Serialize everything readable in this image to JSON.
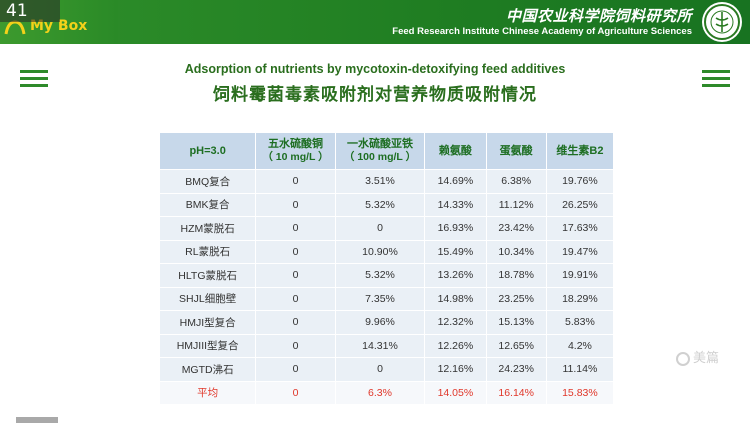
{
  "overlay": {
    "slide_number": "41"
  },
  "header": {
    "brand_text": "My    Box",
    "institute_cn": "中国农业科学院饲料研究所",
    "institute_en": "Feed Research Institute Chinese Academy of Agriculture Sciences",
    "brand_color": "#2f8f2a",
    "brand_text_color": "#f3d21a"
  },
  "slide": {
    "title_en": "Adsorption of nutrients by mycotoxin-detoxifying feed additives",
    "title_cn": "饲料霉菌毒素吸附剂对营养物质吸附情况"
  },
  "table": {
    "header_bg": "#c7d8ea",
    "header_text_color": "#1d6e22",
    "highlight_color": "#e0372a",
    "columns": [
      {
        "label": "pH=3.0",
        "sub": ""
      },
      {
        "label": "五水硫酸铜",
        "sub": "（ 10 mg/L ）"
      },
      {
        "label": "一水硫酸亚铁",
        "sub": "（ 100 mg/L ）"
      },
      {
        "label": "赖氨酸",
        "sub": ""
      },
      {
        "label": "蛋氨酸",
        "sub": ""
      },
      {
        "label": "维生素B2",
        "sub": ""
      }
    ],
    "rows": [
      [
        "BMQ复合",
        "0",
        "3.51%",
        "14.69%",
        "6.38%",
        "19.76%"
      ],
      [
        "BMK复合",
        "0",
        "5.32%",
        "14.33%",
        "11.12%",
        "26.25%"
      ],
      [
        "HZM蒙脱石",
        "0",
        "0",
        "16.93%",
        "23.42%",
        "17.63%"
      ],
      [
        "RL蒙脱石",
        "0",
        "10.90%",
        "15.49%",
        "10.34%",
        "19.47%"
      ],
      [
        "HLTG蒙脱石",
        "0",
        "5.32%",
        "13.26%",
        "18.78%",
        "19.91%"
      ],
      [
        "SHJL细胞壁",
        "0",
        "7.35%",
        "14.98%",
        "23.25%",
        "18.29%"
      ],
      [
        "HMJI型复合",
        "0",
        "9.96%",
        "12.32%",
        "15.13%",
        "5.83%"
      ],
      [
        "HMJIII型复合",
        "0",
        "14.31%",
        "12.26%",
        "12.65%",
        "4.2%"
      ],
      [
        "MGTD沸石",
        "0",
        "0",
        "12.16%",
        "24.23%",
        "11.14%"
      ]
    ],
    "average_row": [
      "平均",
      "0",
      "6.3%",
      "14.05%",
      "16.14%",
      "15.83%"
    ]
  },
  "watermark": {
    "text": "美篇",
    "icon": "meipian-logo-icon"
  }
}
